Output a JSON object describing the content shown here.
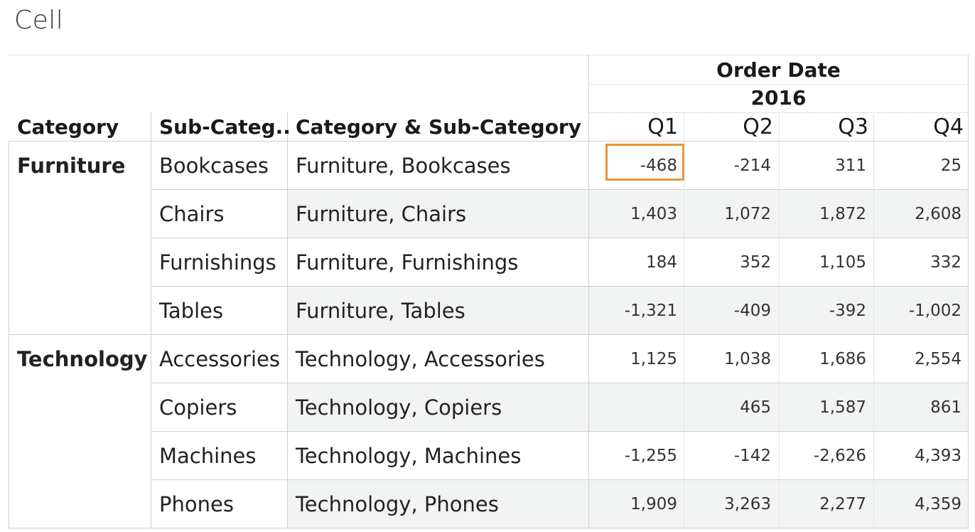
{
  "title": "Cell",
  "header": {
    "col_category": "Category",
    "col_subcategory": "Sub-Categ..",
    "col_combined": "Category & Sub-Category",
    "group_label": "Order Date",
    "year_label": "2016",
    "quarters": [
      "Q1",
      "Q2",
      "Q3",
      "Q4"
    ]
  },
  "categories": [
    "Furniture",
    "Technology"
  ],
  "rows": [
    {
      "sub": "Bookcases",
      "combined": "Furniture, Bookcases",
      "values": [
        "-468",
        "-214",
        "311",
        "25"
      ]
    },
    {
      "sub": "Chairs",
      "combined": "Furniture, Chairs",
      "values": [
        "1,403",
        "1,072",
        "1,872",
        "2,608"
      ]
    },
    {
      "sub": "Furnishings",
      "combined": "Furniture, Furnishings",
      "values": [
        "184",
        "352",
        "1,105",
        "332"
      ]
    },
    {
      "sub": "Tables",
      "combined": "Furniture, Tables",
      "values": [
        "-1,321",
        "-409",
        "-392",
        "-1,002"
      ]
    },
    {
      "sub": "Accessories",
      "combined": "Technology, Accessories",
      "values": [
        "1,125",
        "1,038",
        "1,686",
        "2,554"
      ]
    },
    {
      "sub": "Copiers",
      "combined": "Technology, Copiers",
      "values": [
        "",
        "465",
        "1,587",
        "861"
      ]
    },
    {
      "sub": "Machines",
      "combined": "Technology, Machines",
      "values": [
        "-1,255",
        "-142",
        "-2,626",
        "4,393"
      ]
    },
    {
      "sub": "Phones",
      "combined": "Technology, Phones",
      "values": [
        "1,909",
        "3,263",
        "2,277",
        "4,359"
      ]
    }
  ],
  "highlight_color": "#e8953a",
  "band_color": "#f2f4f3"
}
